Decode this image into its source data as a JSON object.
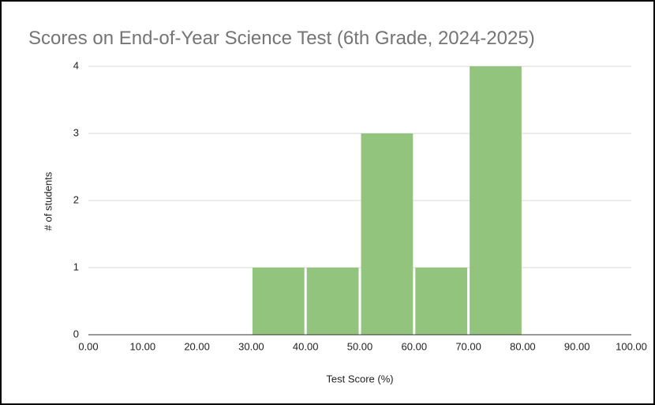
{
  "chart_data": {
    "type": "histogram",
    "title": "Scores on End-of-Year Science Test (6th Grade, 2024-2025)",
    "x_label": "Test Score (%)",
    "y_label": "# of students",
    "bins": [
      0,
      10,
      20,
      30,
      40,
      50,
      60,
      70,
      80,
      90,
      100
    ],
    "values": [
      0,
      0,
      0,
      1,
      1,
      3,
      1,
      4,
      0,
      0
    ],
    "color": "#93c47d",
    "xlim": [
      0,
      100
    ],
    "xticks": [
      {
        "value": 0,
        "label": "0.00"
      },
      {
        "value": 10,
        "label": "10.00"
      },
      {
        "value": 20,
        "label": "20.00"
      },
      {
        "value": 30,
        "label": "30.00"
      },
      {
        "value": 40,
        "label": "40.00"
      },
      {
        "value": 50,
        "label": "50.00"
      },
      {
        "value": 60,
        "label": "60.00"
      },
      {
        "value": 70,
        "label": "70.00"
      },
      {
        "value": 80,
        "label": "80.00"
      },
      {
        "value": 90,
        "label": "90.00"
      },
      {
        "value": 100,
        "label": "100.00"
      }
    ],
    "ylim": [
      0,
      4
    ],
    "yticks": [
      0,
      1,
      2,
      3,
      4
    ],
    "grid": true
  }
}
